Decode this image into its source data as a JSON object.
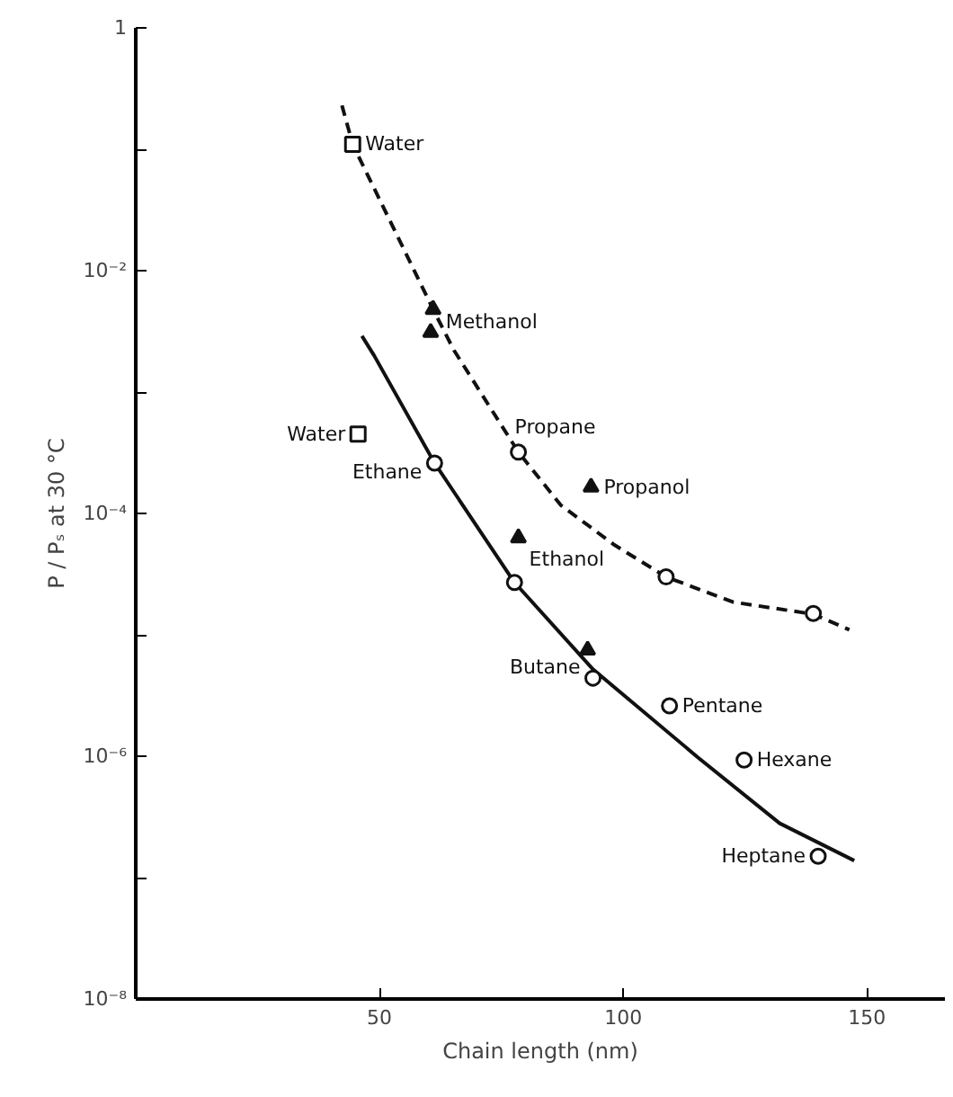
{
  "chart_data": {
    "type": "scatter",
    "xlabel": "Chain length (nm)",
    "ylabel": "P / Pₛ at 30 °C",
    "xlim": [
      0,
      166
    ],
    "xticks": [
      50,
      100,
      150
    ],
    "ylim": [
      1e-08,
      1
    ],
    "yticks": [
      {
        "value": 1,
        "label": "1"
      },
      {
        "value": 0.1,
        "label": null
      },
      {
        "value": 0.01,
        "label": "10⁻²"
      },
      {
        "value": 0.001,
        "label": null
      },
      {
        "value": 0.0001,
        "label": "10⁻⁴"
      },
      {
        "value": 1e-05,
        "label": null
      },
      {
        "value": 1e-06,
        "label": "10⁻⁶"
      },
      {
        "value": 1e-07,
        "label": null
      },
      {
        "value": 1e-08,
        "label": "10⁻⁸"
      }
    ],
    "log": "y",
    "grid": false,
    "series": [
      {
        "type": "line",
        "line_style": "dashed",
        "color": "#111111",
        "x": [
          42.3,
          44.5,
          61,
          65.3,
          78.5,
          87.2,
          98.2,
          108.8,
          122.6,
          139,
          146.4
        ],
        "values": [
          0.23,
          0.11,
          0.0048,
          0.0022,
          0.00032,
          0.000117,
          5.5e-05,
          3e-05,
          1.86e-05,
          1.48e-05,
          1.1e-05
        ]
      },
      {
        "type": "line",
        "line_style": "solid",
        "color": "#111111",
        "x": [
          46.4,
          48.9,
          61.3,
          77.7,
          93.8,
          115.3,
          132.1,
          147.4
        ],
        "values": [
          0.0029,
          0.002,
          0.00026,
          2.7e-05,
          5.2e-06,
          9.8e-07,
          2.8e-07,
          1.38e-07
        ]
      },
      {
        "marker": "square",
        "color": "#111111",
        "x": [
          44.5,
          45.6
        ],
        "values": [
          0.11,
          0.00045
        ]
      },
      {
        "marker": "triangle",
        "color": "#111111",
        "x": [
          61,
          60.5,
          78.5,
          93.4,
          92.7
        ],
        "values": [
          0.0048,
          0.0031,
          6.3e-05,
          0.000165,
          7.5e-06
        ]
      },
      {
        "marker": "circle",
        "color": "#111111",
        "x": [
          61.3,
          78.5,
          77.7,
          108.8,
          139,
          93.8,
          109.5,
          124.8,
          140
        ],
        "values": [
          0.00026,
          0.00032,
          2.7e-05,
          3e-05,
          1.5e-05,
          4.4e-06,
          2.6e-06,
          9.3e-07,
          1.5e-07
        ]
      }
    ],
    "annotations": [
      {
        "text": "Water",
        "x": 44.5,
        "y": 0.11
      },
      {
        "text": "Methanol",
        "x": 61,
        "y": 0.0048
      },
      {
        "text": "Water",
        "x": 45.6,
        "y": 0.00045
      },
      {
        "text": "Ethane",
        "x": 61.3,
        "y": 0.00026
      },
      {
        "text": "Propane",
        "x": 78.5,
        "y": 0.00032
      },
      {
        "text": "Propanol",
        "x": 93.4,
        "y": 0.000165
      },
      {
        "text": "Ethanol",
        "x": 78.5,
        "y": 6.3e-05
      },
      {
        "text": "Butane",
        "x": 93.8,
        "y": 4.4e-06
      },
      {
        "text": "Pentane",
        "x": 109.5,
        "y": 2.6e-06
      },
      {
        "text": "Hexane",
        "x": 124.8,
        "y": 9.3e-07
      },
      {
        "text": "Heptane",
        "x": 140,
        "y": 1.5e-07
      }
    ]
  }
}
